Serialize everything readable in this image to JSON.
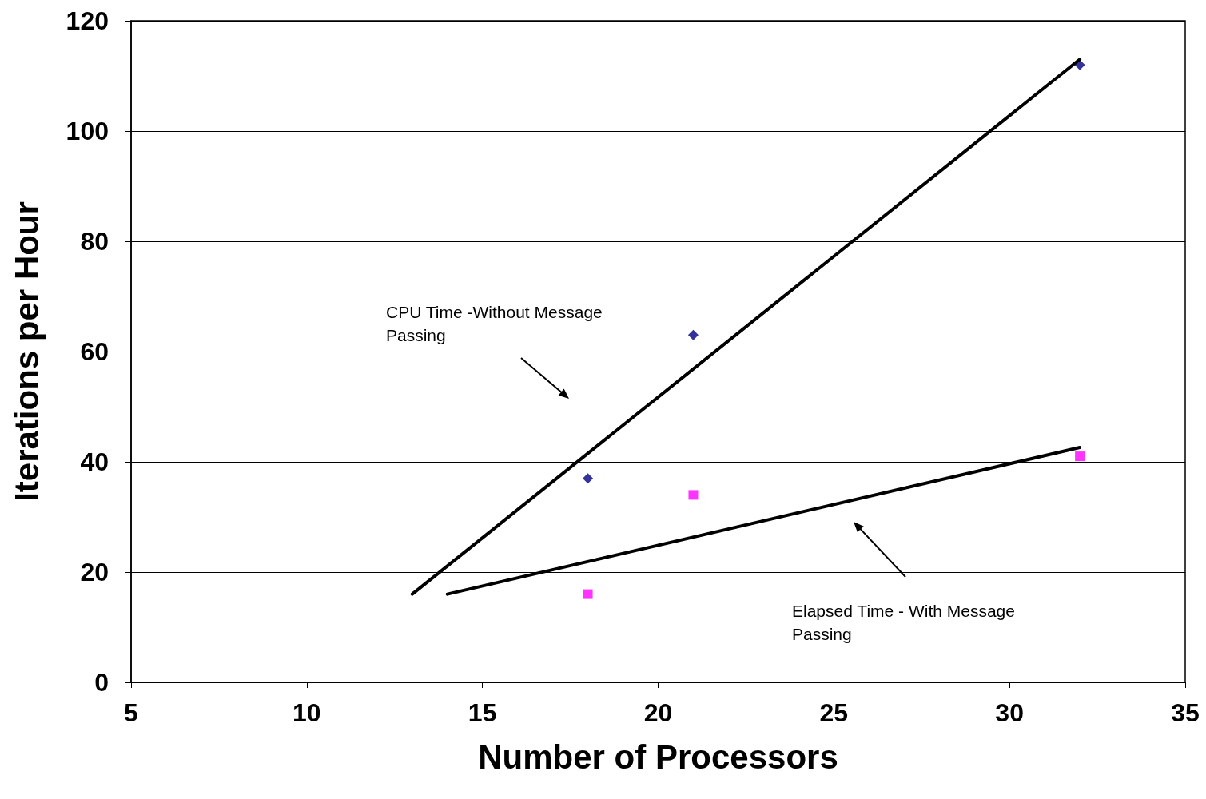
{
  "chart_data": {
    "type": "scatter",
    "xlabel": "Number of Processors",
    "ylabel": "Iterations per Hour",
    "xlim": [
      5,
      35
    ],
    "xticks": [
      5,
      10,
      15,
      20,
      25,
      30,
      35
    ],
    "ylim": [
      0,
      120
    ],
    "yticks": [
      0,
      20,
      40,
      60,
      80,
      100,
      120
    ],
    "grid": "y",
    "series": [
      {
        "color": "#000080",
        "marker": "diamond",
        "x": [
          18,
          21,
          32
        ],
        "values": [
          37,
          63,
          112
        ]
      },
      {
        "color": "#ff00ff",
        "marker": "square",
        "x": [
          18,
          21,
          32
        ],
        "values": [
          16,
          34,
          41
        ]
      },
      {
        "type": "line",
        "color": "#000000",
        "marker": "none",
        "line_style": "solid",
        "x": [
          13,
          32
        ],
        "values": [
          16,
          113
        ]
      },
      {
        "type": "line",
        "color": "#000000",
        "marker": "none",
        "line_style": "solid",
        "x": [
          14,
          32
        ],
        "values": [
          16,
          42.6
        ]
      }
    ],
    "annotations": [
      "CPU Time -Without Message Passing",
      "Elapsed Time - With Message Passing"
    ]
  }
}
